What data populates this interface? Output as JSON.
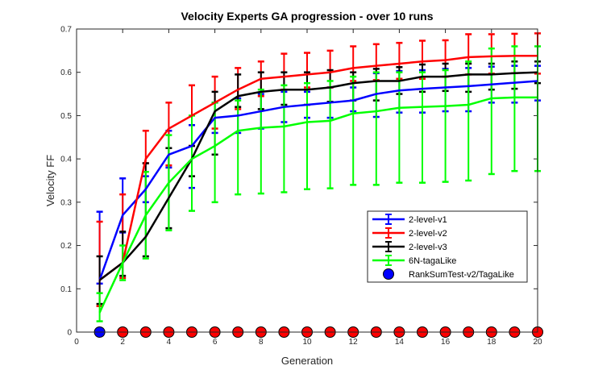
{
  "chart_data": {
    "type": "line",
    "title": "Velocity Experts GA progression - over 10 runs",
    "xlabel": "Generation",
    "ylabel": "Velocity FF",
    "xlim": [
      0,
      20
    ],
    "ylim": [
      0,
      0.7
    ],
    "xticks": [
      0,
      2,
      4,
      6,
      8,
      10,
      12,
      14,
      16,
      18,
      20
    ],
    "yticks": [
      0,
      0.1,
      0.2,
      0.3,
      0.4,
      0.5,
      0.6,
      0.7
    ],
    "grid": false,
    "legend_position": "lower-right",
    "x": [
      1,
      2,
      3,
      4,
      5,
      6,
      7,
      8,
      9,
      10,
      11,
      12,
      13,
      14,
      15,
      16,
      17,
      18,
      19,
      20
    ],
    "series": [
      {
        "name": "2-level-v1",
        "color": "#0000ff",
        "values": [
          0.12,
          0.27,
          0.33,
          0.41,
          0.43,
          0.495,
          0.5,
          0.51,
          0.52,
          0.525,
          0.53,
          0.535,
          0.55,
          0.558,
          0.562,
          0.565,
          0.568,
          0.572,
          0.576,
          0.58
        ],
        "upper": [
          0.278,
          0.355,
          0.36,
          0.465,
          0.478,
          0.53,
          0.54,
          0.55,
          0.555,
          0.555,
          0.565,
          0.565,
          0.598,
          0.603,
          0.605,
          0.608,
          0.61,
          0.613,
          0.615,
          0.615
        ],
        "lower": [
          0.112,
          0.23,
          0.3,
          0.38,
          0.333,
          0.46,
          0.46,
          0.47,
          0.485,
          0.495,
          0.495,
          0.51,
          0.497,
          0.507,
          0.507,
          0.51,
          0.51,
          0.53,
          0.53,
          0.535
        ]
      },
      {
        "name": "2-level-v2",
        "color": "#ff0000",
        "values": [
          0.12,
          0.16,
          0.4,
          0.47,
          0.5,
          0.53,
          0.56,
          0.585,
          0.59,
          0.595,
          0.6,
          0.61,
          0.615,
          0.62,
          0.625,
          0.628,
          0.635,
          0.637,
          0.638,
          0.638
        ],
        "upper": [
          0.255,
          0.318,
          0.465,
          0.53,
          0.57,
          0.59,
          0.61,
          0.625,
          0.643,
          0.645,
          0.65,
          0.66,
          0.665,
          0.668,
          0.673,
          0.674,
          0.688,
          0.688,
          0.689,
          0.69
        ],
        "lower": [
          0.06,
          0.125,
          0.39,
          0.385,
          0.43,
          0.47,
          0.515,
          0.545,
          0.56,
          0.565,
          0.565,
          0.58,
          0.582,
          0.585,
          0.585,
          0.59,
          0.595,
          0.597,
          0.598,
          0.597
        ]
      },
      {
        "name": "2-level-v3",
        "color": "#000000",
        "values": [
          0.12,
          0.16,
          0.22,
          0.31,
          0.4,
          0.51,
          0.545,
          0.555,
          0.56,
          0.56,
          0.565,
          0.575,
          0.58,
          0.58,
          0.59,
          0.59,
          0.595,
          0.595,
          0.598,
          0.6
        ],
        "upper": [
          0.175,
          0.232,
          0.39,
          0.425,
          0.43,
          0.555,
          0.595,
          0.6,
          0.6,
          0.6,
          0.605,
          0.6,
          0.608,
          0.612,
          0.618,
          0.62,
          0.62,
          0.62,
          0.625,
          0.625
        ],
        "lower": [
          0.065,
          0.13,
          0.175,
          0.24,
          0.36,
          0.41,
          0.52,
          0.515,
          0.525,
          0.525,
          0.532,
          0.535,
          0.535,
          0.55,
          0.555,
          0.557,
          0.555,
          0.56,
          0.562,
          0.575
        ]
      },
      {
        "name": "6N-tagaLike",
        "color": "#00ff00",
        "values": [
          0.045,
          0.16,
          0.27,
          0.345,
          0.4,
          0.43,
          0.465,
          0.472,
          0.475,
          0.485,
          0.488,
          0.505,
          0.51,
          0.518,
          0.52,
          0.522,
          0.525,
          0.54,
          0.542,
          0.542
        ],
        "upper": [
          0.09,
          0.2,
          0.37,
          0.455,
          0.5,
          0.53,
          0.535,
          0.56,
          0.57,
          0.575,
          0.58,
          0.59,
          0.6,
          0.6,
          0.6,
          0.605,
          0.625,
          0.655,
          0.66,
          0.66
        ],
        "lower": [
          0.025,
          0.12,
          0.17,
          0.235,
          0.28,
          0.3,
          0.318,
          0.32,
          0.323,
          0.33,
          0.332,
          0.34,
          0.34,
          0.345,
          0.345,
          0.347,
          0.35,
          0.365,
          0.372,
          0.372
        ]
      }
    ],
    "markers": {
      "name": "RankSumTest-v2/TagaLike",
      "y": 0,
      "colors": [
        "#0000ff",
        "#ff0000",
        "#ff0000",
        "#ff0000",
        "#ff0000",
        "#ff0000",
        "#ff0000",
        "#ff0000",
        "#ff0000",
        "#ff0000",
        "#ff0000",
        "#ff0000",
        "#ff0000",
        "#ff0000",
        "#ff0000",
        "#ff0000",
        "#ff0000",
        "#ff0000",
        "#ff0000",
        "#ff0000"
      ]
    }
  }
}
